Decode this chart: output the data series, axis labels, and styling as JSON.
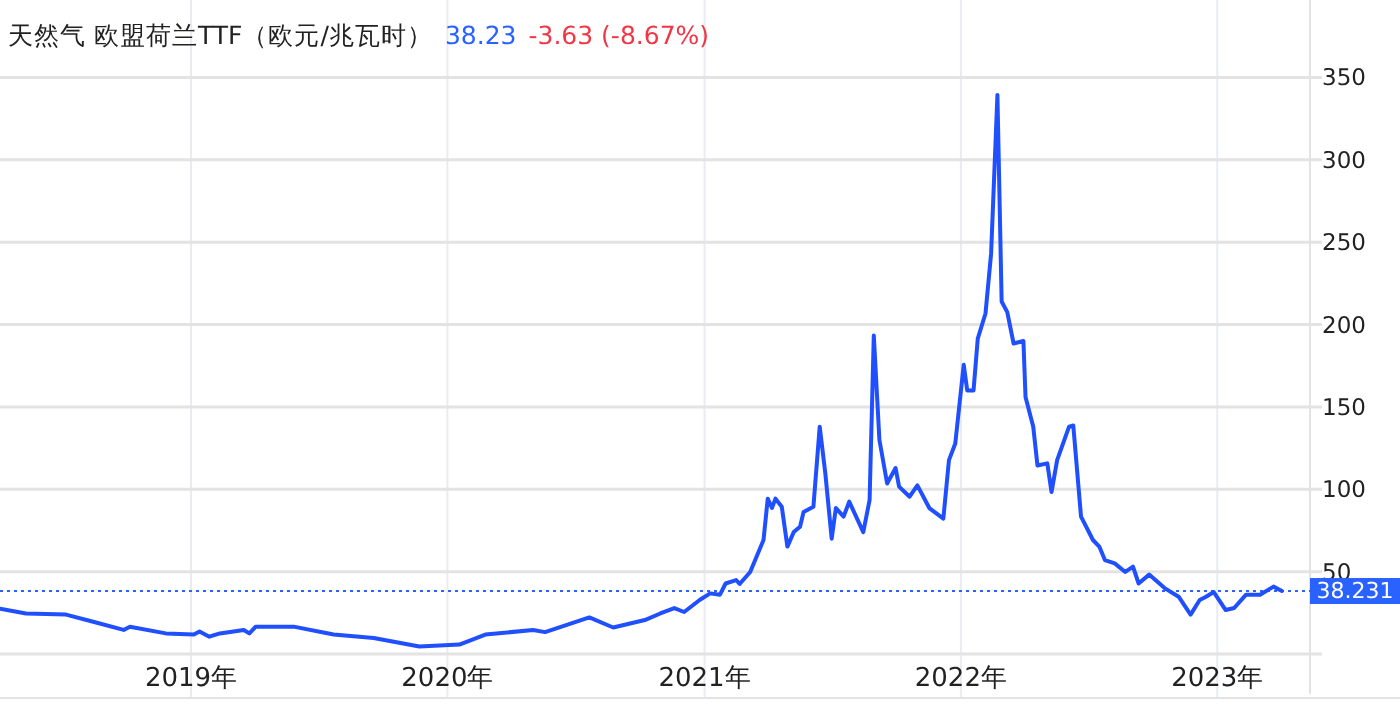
{
  "chart_data": {
    "type": "line",
    "title": "天然气 欧盟荷兰TTF（欧元/兆瓦时）",
    "annotations": [
      "38.23",
      "-3.63 (-8.67%)"
    ],
    "x": [
      "2018-04-04",
      "2018-05-11",
      "2018-07-07",
      "2018-08-16",
      "2018-09-27",
      "2018-10-06",
      "2018-11-26",
      "2019-01-05",
      "2019-01-13",
      "2019-01-27",
      "2019-02-11",
      "2019-03-17",
      "2019-03-25",
      "2019-04-03",
      "2019-05-27",
      "2019-07-23",
      "2019-09-18",
      "2019-11-22",
      "2020-01-18",
      "2020-02-24",
      "2020-05-02",
      "2020-05-19",
      "2020-07-21",
      "2020-08-24",
      "2020-10-08",
      "2020-10-30",
      "2020-11-19",
      "2020-12-03",
      "2020-12-25",
      "2021-01-09",
      "2021-01-23",
      "2021-01-31",
      "2021-02-15",
      "2021-02-20",
      "2021-03-07",
      "2021-03-26",
      "2021-04-01",
      "2021-04-07",
      "2021-04-12",
      "2021-04-21",
      "2021-04-29",
      "2021-05-08",
      "2021-05-17",
      "2021-05-22",
      "2021-06-05",
      "2021-06-14",
      "2021-06-22",
      "2021-07-01",
      "2021-07-07",
      "2021-07-18",
      "2021-07-26",
      "2021-08-15",
      "2021-08-24",
      "2021-08-30",
      "2021-09-07",
      "2021-09-18",
      "2021-09-30",
      "2021-10-05",
      "2021-10-20",
      "2021-10-31",
      "2021-11-17",
      "2021-12-07",
      "2021-12-15",
      "2021-12-24",
      "2022-01-05",
      "2022-01-10",
      "2022-01-19",
      "2022-01-25",
      "2022-02-05",
      "2022-02-13",
      "2022-02-22",
      "2022-02-28",
      "2022-03-08",
      "2022-03-17",
      "2022-03-31",
      "2022-04-03",
      "2022-04-14",
      "2022-04-20",
      "2022-05-04",
      "2022-05-10",
      "2022-05-18",
      "2022-06-04",
      "2022-06-10",
      "2022-06-21",
      "2022-07-08",
      "2022-07-17",
      "2022-07-25",
      "2022-08-08",
      "2022-08-23",
      "2022-09-03",
      "2022-09-11",
      "2022-09-26",
      "2022-10-18",
      "2022-11-07",
      "2022-11-24",
      "2022-12-07",
      "2022-12-16",
      "2022-12-27",
      "2023-01-13",
      "2023-01-25",
      "2023-02-11",
      "2023-03-03",
      "2023-03-22",
      "2023-04-03"
    ],
    "series": [
      {
        "color": "#1f4fff",
        "values": [
          27.5,
          24.6,
          23.9,
          19.4,
          14.6,
          16.6,
          12.5,
          11.8,
          13.7,
          10.5,
          12.5,
          14.6,
          12.5,
          16.6,
          16.6,
          11.8,
          9.7,
          4.5,
          5.7,
          11.8,
          14.6,
          13.3,
          22.2,
          16.1,
          20.6,
          24.6,
          27.9,
          25.5,
          32.8,
          36.8,
          36,
          42.8,
          44.9,
          42.5,
          49.8,
          69.2,
          94.3,
          88.6,
          94.3,
          89.4,
          65.2,
          74,
          77.3,
          86.2,
          89.4,
          138,
          109.6,
          70,
          88.6,
          83.4,
          92.5,
          74,
          93.4,
          193.3,
          129.9,
          103.5,
          112.9,
          101.6,
          95.5,
          102.4,
          88.6,
          82.2,
          117.7,
          127.8,
          175.6,
          160,
          160,
          191.4,
          206.7,
          243,
          339.4,
          214,
          207.5,
          188.5,
          190,
          156,
          138,
          114.4,
          115.7,
          98.3,
          117.7,
          138,
          138.7,
          83.4,
          69.2,
          65.2,
          57,
          55,
          49.8,
          53,
          42.8,
          48.2,
          40,
          34.8,
          23.9,
          32.8,
          34.8,
          37.6,
          26.7,
          27.9,
          36,
          36,
          40.9,
          38.23
        ]
      }
    ],
    "xlim": [
      "2018-04-04",
      "2023-05-13"
    ],
    "ylim": [
      0,
      397
    ],
    "xticks": [
      {
        "value": "2019-01-01",
        "label": "2019年"
      },
      {
        "value": "2020-01-01",
        "label": "2020年"
      },
      {
        "value": "2021-01-01",
        "label": "2021年"
      },
      {
        "value": "2022-01-01",
        "label": "2022年"
      },
      {
        "value": "2023-01-01",
        "label": "2023年"
      }
    ],
    "yticks": [
      {
        "value": 0,
        "label": null
      },
      50,
      100,
      150,
      200,
      250,
      300,
      350
    ],
    "grid": true,
    "ref_lines": [
      {
        "axis": "y",
        "value": 38.231,
        "label": "38.231",
        "color": "#2962ff",
        "line_style": "dotted"
      }
    ]
  }
}
